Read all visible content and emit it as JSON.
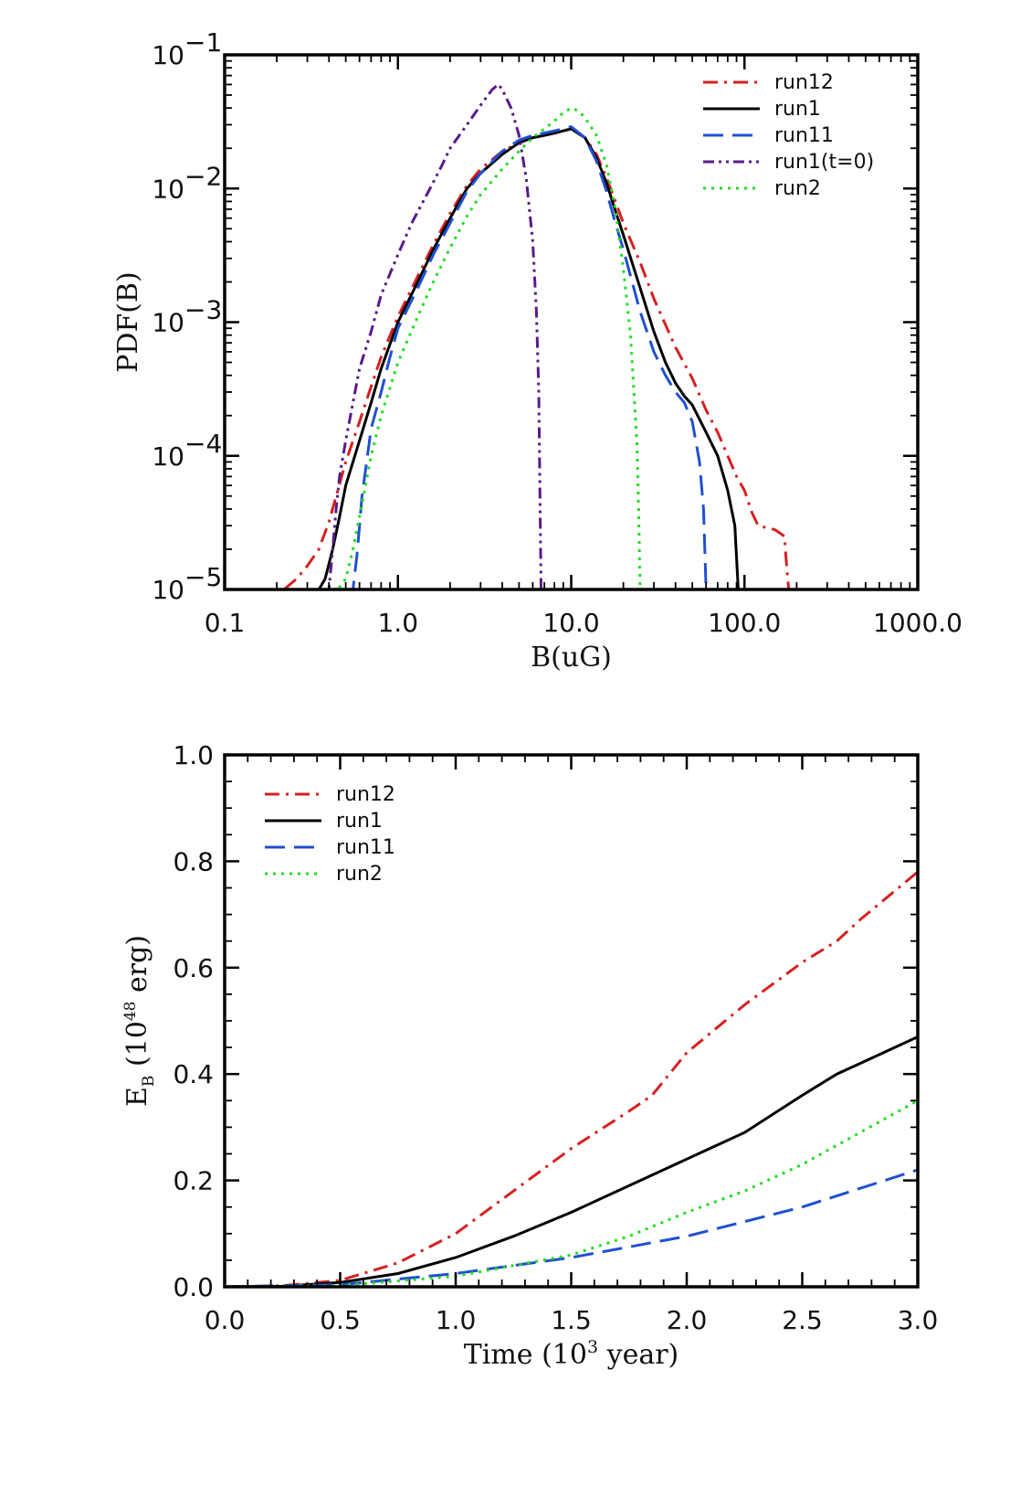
{
  "chart_data": [
    {
      "type": "line",
      "xscale": "log",
      "yscale": "log",
      "xlabel": "B(uG)",
      "ylabel": "PDF(B)",
      "xlim": [
        0.1,
        1000
      ],
      "ylim": [
        1e-05,
        0.1
      ],
      "xticks": [
        {
          "value": 0.1,
          "label": "0.1"
        },
        {
          "value": 1,
          "label": "1.0"
        },
        {
          "value": 10,
          "label": "10.0"
        },
        {
          "value": 100,
          "label": "100.0"
        },
        {
          "value": 1000,
          "label": "1000.0"
        }
      ],
      "yticks": [
        {
          "value": 0.1,
          "base": "10",
          "exp": "−1"
        },
        {
          "value": 0.01,
          "base": "10",
          "exp": "−2"
        },
        {
          "value": 0.001,
          "base": "10",
          "exp": "−3"
        },
        {
          "value": 0.0001,
          "base": "10",
          "exp": "−4"
        },
        {
          "value": 1e-05,
          "base": "10",
          "exp": "−5"
        }
      ],
      "legend_position": "top-right",
      "series": [
        {
          "name": "run12",
          "color": "#d62020",
          "dash": "dashdot",
          "x": [
            0.1,
            0.22,
            0.26,
            0.3,
            0.35,
            0.4,
            0.45,
            0.5,
            0.6,
            0.7,
            0.8,
            1.0,
            1.3,
            1.6,
            2.0,
            2.5,
            3.0,
            4.0,
            5.0,
            6.0,
            7.0,
            8.0,
            9.0,
            10.0,
            12.0,
            14.0,
            16.0,
            18.0,
            20.0,
            25.0,
            30.0,
            40.0,
            50.0,
            60.0,
            70.0,
            80.0,
            90.0,
            100.0,
            110.0,
            120.0,
            150.0,
            170.0,
            175.0,
            180.0,
            1000.0
          ],
          "y": [
            1e-05,
            1e-05,
            1.2e-05,
            1.5e-05,
            2e-05,
            3.2e-05,
            5.5e-05,
            9e-05,
            0.00018,
            0.00033,
            0.00055,
            0.0011,
            0.0022,
            0.0038,
            0.0065,
            0.0105,
            0.014,
            0.019,
            0.022,
            0.024,
            0.025,
            0.026,
            0.027,
            0.028,
            0.024,
            0.018,
            0.012,
            0.008,
            0.0055,
            0.0028,
            0.0015,
            0.00065,
            0.00038,
            0.00022,
            0.00015,
            0.0001,
            7e-05,
            5.5e-05,
            3.8e-05,
            3e-05,
            2.8e-05,
            2.5e-05,
            1.5e-05,
            1e-05,
            1e-05
          ]
        },
        {
          "name": "run1",
          "color": "#000000",
          "dash": "solid",
          "x": [
            0.1,
            0.35,
            0.38,
            0.42,
            0.46,
            0.5,
            0.6,
            0.7,
            0.8,
            1.0,
            1.3,
            1.6,
            2.0,
            2.5,
            3.0,
            4.0,
            5.0,
            6.0,
            7.0,
            8.0,
            9.0,
            10.0,
            12.0,
            14.0,
            16.0,
            18.0,
            20.0,
            25.0,
            30.0,
            35.0,
            40.0,
            45.0,
            50.0,
            60.0,
            70.0,
            80.0,
            88.0,
            92.0,
            1000.0
          ],
          "y": [
            1e-05,
            1e-05,
            1.2e-05,
            2e-05,
            3.5e-05,
            6e-05,
            0.00013,
            0.00025,
            0.00045,
            0.001,
            0.002,
            0.0035,
            0.006,
            0.01,
            0.013,
            0.018,
            0.022,
            0.024,
            0.025,
            0.026,
            0.027,
            0.028,
            0.024,
            0.017,
            0.011,
            0.0068,
            0.0045,
            0.0018,
            0.00085,
            0.0005,
            0.00035,
            0.00028,
            0.00024,
            0.00015,
            0.0001,
            5.5e-05,
            3e-05,
            1e-05,
            1e-05
          ]
        },
        {
          "name": "run11",
          "color": "#2050d0",
          "dash": "dashed",
          "x": [
            0.1,
            0.55,
            0.58,
            0.6,
            0.62,
            0.66,
            0.7,
            0.8,
            0.9,
            1.0,
            1.3,
            1.6,
            2.0,
            2.5,
            3.0,
            4.0,
            5.0,
            6.0,
            7.0,
            8.0,
            9.0,
            10.0,
            12.0,
            14.0,
            16.0,
            18.0,
            20.0,
            25.0,
            30.0,
            35.0,
            40.0,
            45.0,
            50.0,
            55.0,
            58.0,
            60.0,
            1000.0
          ],
          "y": [
            1e-05,
            1e-05,
            1.8e-05,
            3e-05,
            5e-05,
            9e-05,
            0.00016,
            0.0003,
            0.00055,
            0.0009,
            0.0018,
            0.0032,
            0.0055,
            0.0095,
            0.013,
            0.019,
            0.023,
            0.025,
            0.026,
            0.027,
            0.028,
            0.029,
            0.024,
            0.016,
            0.0095,
            0.0055,
            0.0035,
            0.0012,
            0.0006,
            0.0004,
            0.0003,
            0.00025,
            0.00018,
            9e-05,
            4e-05,
            1e-05,
            1e-05
          ]
        },
        {
          "name": "run1(t=0)",
          "color": "#5a1a8a",
          "dash": "dashdotdot",
          "x": [
            0.1,
            0.4,
            0.42,
            0.44,
            0.46,
            0.5,
            0.55,
            0.6,
            0.7,
            0.8,
            1.0,
            1.2,
            1.5,
            1.8,
            2.0,
            2.5,
            3.0,
            3.5,
            3.8,
            4.0,
            4.5,
            5.0,
            5.5,
            6.0,
            6.3,
            6.5,
            6.6,
            6.7,
            1000.0
          ],
          "y": [
            1e-05,
            1e-05,
            2e-05,
            4e-05,
            7e-05,
            0.00013,
            0.00025,
            0.00045,
            0.00085,
            0.0016,
            0.0032,
            0.0055,
            0.0095,
            0.015,
            0.02,
            0.03,
            0.042,
            0.055,
            0.06,
            0.055,
            0.04,
            0.025,
            0.012,
            0.004,
            0.0012,
            0.0003,
            5e-05,
            1e-05,
            1e-05
          ]
        },
        {
          "name": "run2",
          "color": "#22dd22",
          "dash": "dotted",
          "x": [
            0.1,
            0.45,
            0.5,
            0.55,
            0.6,
            0.65,
            0.7,
            0.8,
            1.0,
            1.3,
            1.6,
            2.0,
            2.5,
            3.0,
            4.0,
            5.0,
            6.0,
            7.0,
            8.0,
            9.0,
            10.0,
            11.0,
            12.0,
            14.0,
            16.0,
            18.0,
            20.0,
            22.0,
            24.0,
            24.5,
            25.0,
            1000.0
          ],
          "y": [
            1e-05,
            1e-05,
            1.2e-05,
            2e-05,
            3.5e-05,
            6e-05,
            0.0001,
            0.0002,
            0.0005,
            0.0011,
            0.002,
            0.0036,
            0.0062,
            0.009,
            0.014,
            0.019,
            0.024,
            0.028,
            0.032,
            0.037,
            0.04,
            0.038,
            0.034,
            0.025,
            0.015,
            0.007,
            0.0025,
            0.0008,
            0.00012,
            4e-05,
            1e-05,
            1e-05
          ]
        }
      ]
    },
    {
      "type": "line",
      "xlabel": "Time (10",
      "xlabel_sup": "3",
      "xlabel_end": " year)",
      "ylabel": "E",
      "ylabel_sub": "B",
      "ylabel_mid": " (10",
      "ylabel_sup": "48",
      "ylabel_end": " erg)",
      "xlim": [
        0,
        3
      ],
      "ylim": [
        0,
        1
      ],
      "xticks": [
        {
          "value": 0.0,
          "label": "0.0"
        },
        {
          "value": 0.5,
          "label": "0.5"
        },
        {
          "value": 1.0,
          "label": "1.0"
        },
        {
          "value": 1.5,
          "label": "1.5"
        },
        {
          "value": 2.0,
          "label": "2.0"
        },
        {
          "value": 2.5,
          "label": "2.5"
        },
        {
          "value": 3.0,
          "label": "3.0"
        }
      ],
      "yticks": [
        {
          "value": 0.0,
          "label": "0.0"
        },
        {
          "value": 0.2,
          "label": "0.2"
        },
        {
          "value": 0.4,
          "label": "0.4"
        },
        {
          "value": 0.6,
          "label": "0.6"
        },
        {
          "value": 0.8,
          "label": "0.8"
        },
        {
          "value": 1.0,
          "label": "1.0"
        }
      ],
      "legend_position": "top-left",
      "series": [
        {
          "name": "run12",
          "color": "#d62020",
          "dash": "dashdot",
          "x": [
            0,
            0.25,
            0.5,
            0.75,
            1.0,
            1.25,
            1.5,
            1.75,
            1.85,
            2.0,
            2.25,
            2.5,
            2.65,
            2.75,
            3.0
          ],
          "y": [
            0,
            0.002,
            0.012,
            0.045,
            0.1,
            0.18,
            0.26,
            0.33,
            0.36,
            0.44,
            0.53,
            0.61,
            0.65,
            0.69,
            0.78
          ]
        },
        {
          "name": "run1",
          "color": "#000000",
          "dash": "solid",
          "x": [
            0,
            0.25,
            0.5,
            0.75,
            1.0,
            1.25,
            1.5,
            1.75,
            2.0,
            2.25,
            2.5,
            2.65,
            2.75,
            3.0
          ],
          "y": [
            0,
            0.001,
            0.008,
            0.025,
            0.055,
            0.095,
            0.14,
            0.19,
            0.24,
            0.29,
            0.36,
            0.4,
            0.42,
            0.47
          ]
        },
        {
          "name": "run11",
          "color": "#2050d0",
          "dash": "dashed",
          "x": [
            0,
            0.5,
            1.0,
            1.5,
            2.0,
            2.5,
            3.0
          ],
          "y": [
            0,
            0.004,
            0.025,
            0.055,
            0.095,
            0.15,
            0.22
          ]
        },
        {
          "name": "run2",
          "color": "#22dd22",
          "dash": "dotted",
          "x": [
            0,
            0.5,
            1.0,
            1.5,
            1.75,
            2.0,
            2.25,
            2.5,
            2.75,
            3.0
          ],
          "y": [
            0,
            0.002,
            0.02,
            0.06,
            0.095,
            0.14,
            0.18,
            0.23,
            0.29,
            0.35
          ]
        }
      ]
    }
  ]
}
